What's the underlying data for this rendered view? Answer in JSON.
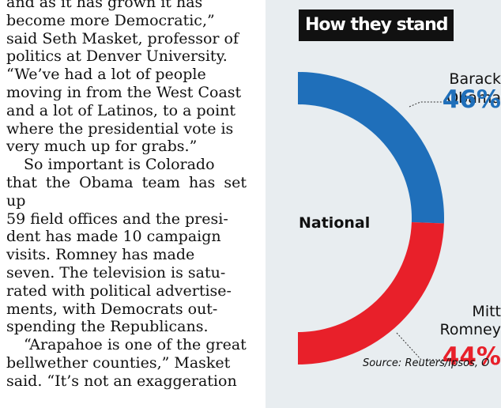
{
  "article": {
    "lines": [
      "and as it has grown it has",
      "become more Democratic,”",
      "said Seth Masket, professor of",
      "politics at Denver University.",
      "“We’ve had a lot of people",
      "moving in from the West Coast",
      "and a lot of Latinos, to a point",
      "where the presidential vote is",
      "very much up for grabs.”",
      "So important is Colorado",
      "that the Obama team has set up",
      "59 field offices and the presi-",
      "dent has made 10 campaign",
      "visits. Romney has made",
      "seven. The television is satu-",
      "rated with political advertise-",
      "ments, with Democrats out-",
      "spending the Republicans.",
      "“Arapahoe is one of the great",
      "bellwether counties,” Masket",
      "said. “It’s not an exaggeration"
    ]
  },
  "chart_data": {
    "type": "pie",
    "title": "How they stand",
    "center_label": "National",
    "series": [
      {
        "name": "Barack Obama",
        "name_lines": [
          "Barack",
          "Obama"
        ],
        "value": 46,
        "label": "46%",
        "color": "#1f6fba"
      },
      {
        "name": "Mitt Romney",
        "name_lines": [
          "Mitt",
          "Romney"
        ],
        "value": 44,
        "label": "44%",
        "color": "#e8202a"
      }
    ],
    "source": "Source: Reuters/Ipsos, O"
  }
}
